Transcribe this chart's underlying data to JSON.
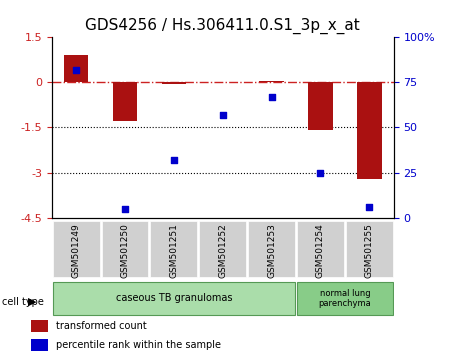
{
  "title": "GDS4256 / Hs.306411.0.S1_3p_x_at",
  "samples": [
    "GSM501249",
    "GSM501250",
    "GSM501251",
    "GSM501252",
    "GSM501253",
    "GSM501254",
    "GSM501255"
  ],
  "transformed_count": [
    0.9,
    -1.3,
    -0.05,
    0.02,
    0.05,
    -1.6,
    -3.2
  ],
  "percentile_rank": [
    82,
    5,
    32,
    57,
    67,
    25,
    6
  ],
  "left_ylim": [
    -4.5,
    1.5
  ],
  "right_ylim": [
    0,
    100
  ],
  "right_ytick_labels": [
    "0",
    "25",
    "50",
    "75",
    "100%"
  ],
  "right_ytick_values": [
    0,
    25,
    50,
    75,
    100
  ],
  "left_ytick_values": [
    -4.5,
    -3,
    -1.5,
    0,
    1.5
  ],
  "left_ytick_labels": [
    "-4.5",
    "-3",
    "-1.5",
    "0",
    "1.5"
  ],
  "bar_color": "#aa1111",
  "dot_color": "#0000cc",
  "hline_color": "#cc2222",
  "dotted_line_color": "#000000",
  "cell_type_label": "cell type",
  "group1_label": "caseous TB granulomas",
  "group1_color": "#aaddaa",
  "group1_border": "#559955",
  "group2_label": "normal lung\nparenchyma",
  "group2_color": "#88cc88",
  "group2_border": "#559955",
  "legend_bar_label": "transformed count",
  "legend_dot_label": "percentile rank within the sample",
  "title_fontsize": 11,
  "tick_fontsize": 8,
  "bar_width": 0.5,
  "box_color": "#d0d0d0"
}
